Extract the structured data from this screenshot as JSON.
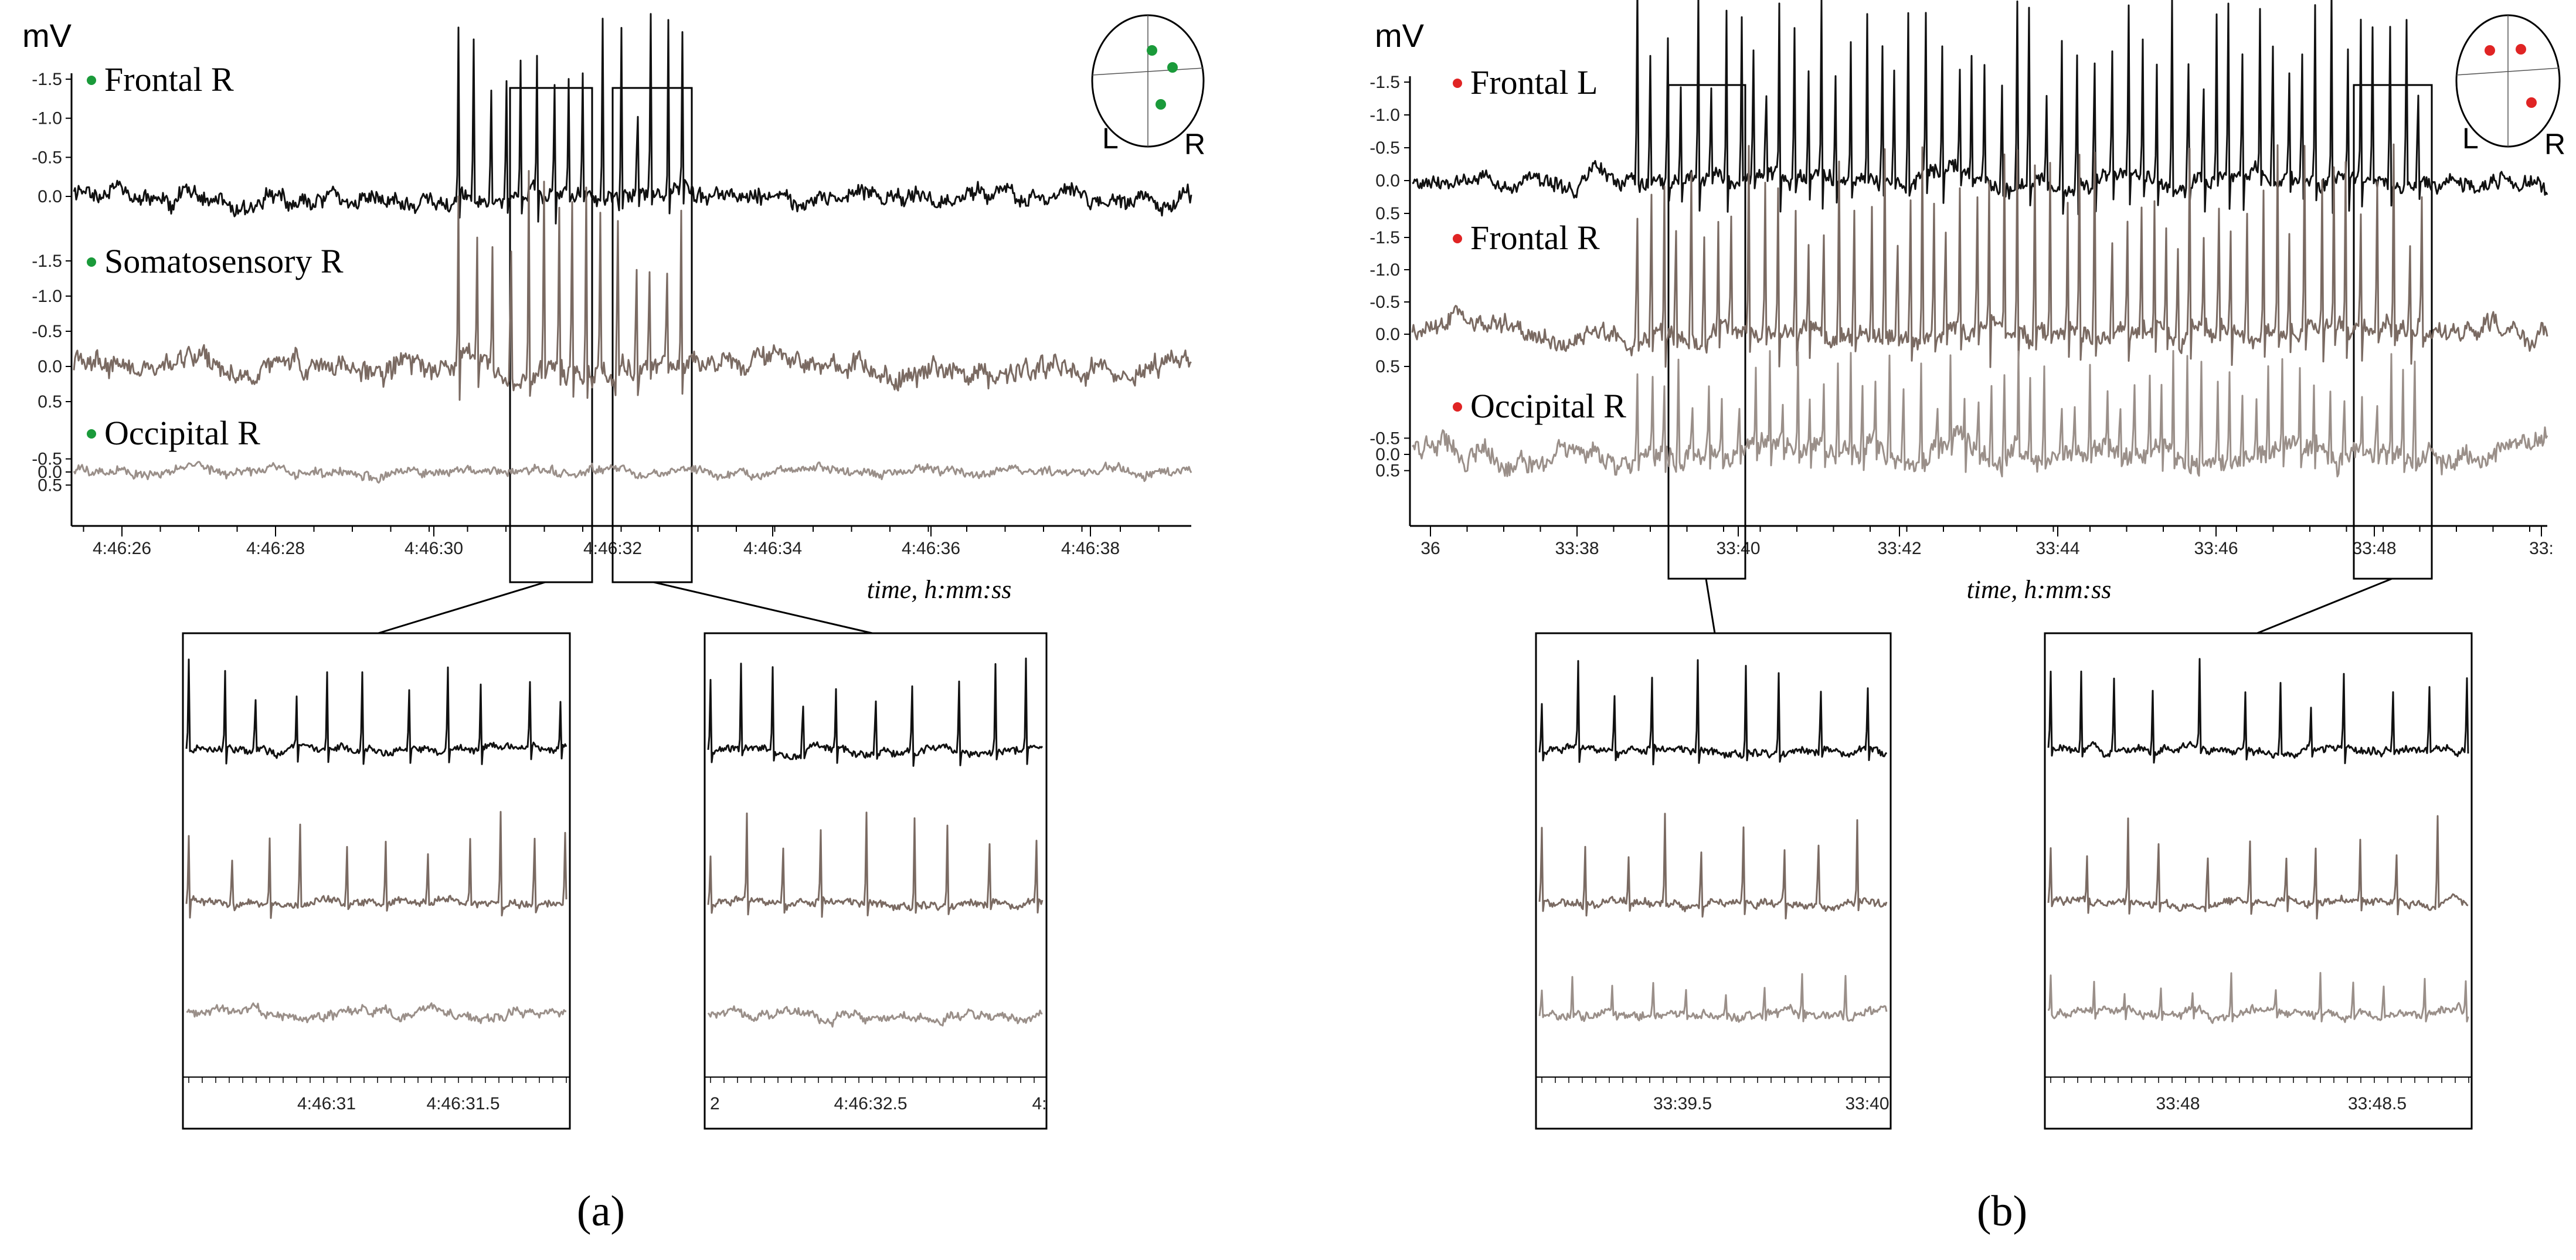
{
  "chart_data": [
    {
      "panel": "(a)",
      "type": "line",
      "unit_label": "mV",
      "xlabel": "time, h:mm:ss",
      "y_ticks": [
        "-1.5",
        "-1.0",
        "-0.5",
        "0.0",
        "0.5"
      ],
      "ylim": [
        0.5,
        -1.5
      ],
      "x_ticks": [
        "4:46:26",
        "4:46:28",
        "4:46:30",
        "4:46:32",
        "4:46:34",
        "4:46:36",
        "4:46:38"
      ],
      "xlim_seconds": [
        24.8,
        39.3
      ],
      "electrode_color": "#1a9a3a",
      "head_labels": {
        "left": "L",
        "right": "R"
      },
      "highlight_windows": [
        [
          "4:46:30.8",
          "4:46:31.8"
        ],
        [
          "4:46:32.0",
          "4:46:33.0"
        ]
      ],
      "series": [
        {
          "name": "Frontal R",
          "color": "#111111",
          "discharge_window": [
            "4:46:30",
            "4:46:33"
          ]
        },
        {
          "name": "Somatosensory R",
          "color": "#7a6a62",
          "discharge_window": [
            "4:46:30",
            "4:46:33"
          ]
        },
        {
          "name": "Occipital R",
          "color": "#9a8f89",
          "discharge_window": []
        }
      ],
      "insets": [
        {
          "x_ticks": [
            "4:46:31",
            "4:46:31.5"
          ],
          "edge_labels": [
            "",
            ""
          ]
        },
        {
          "x_ticks": [
            "4:46:32.5"
          ],
          "edge_labels": [
            "2",
            "4:"
          ]
        }
      ]
    },
    {
      "panel": "(b)",
      "type": "line",
      "unit_label": "mV",
      "xlabel": "time, h:mm:ss",
      "y_ticks": [
        "-1.5",
        "-1.0",
        "-0.5",
        "0.0",
        "0.5"
      ],
      "ylim": [
        0.5,
        -1.5
      ],
      "x_ticks": [
        "36",
        "33:38",
        "33:40",
        "33:42",
        "33:44",
        "33:46",
        "33:48",
        "33:"
      ],
      "xlim_seconds": [
        36,
        50
      ],
      "electrode_color": "#e02424",
      "head_labels": {
        "left": "L",
        "right": "R"
      },
      "highlight_windows": [
        [
          "33:39.2",
          "33:40.1"
        ],
        [
          "33:47.6",
          "33:48.6"
        ]
      ],
      "series": [
        {
          "name": "Frontal L",
          "color": "#111111",
          "discharge_window": [
            "33:38.5",
            "33:49"
          ]
        },
        {
          "name": "Frontal R",
          "color": "#7a6a62",
          "discharge_window": [
            "33:38.5",
            "33:49"
          ]
        },
        {
          "name": "Occipital R",
          "color": "#9a8f89",
          "discharge_window": [
            "33:38.5",
            "33:49"
          ]
        }
      ],
      "insets": [
        {
          "x_ticks": [
            "33:39.5"
          ],
          "edge_labels": [
            "",
            "33:40"
          ]
        },
        {
          "x_ticks": [
            "33:48",
            "33:48.5"
          ],
          "edge_labels": [
            "",
            ""
          ]
        }
      ]
    }
  ]
}
